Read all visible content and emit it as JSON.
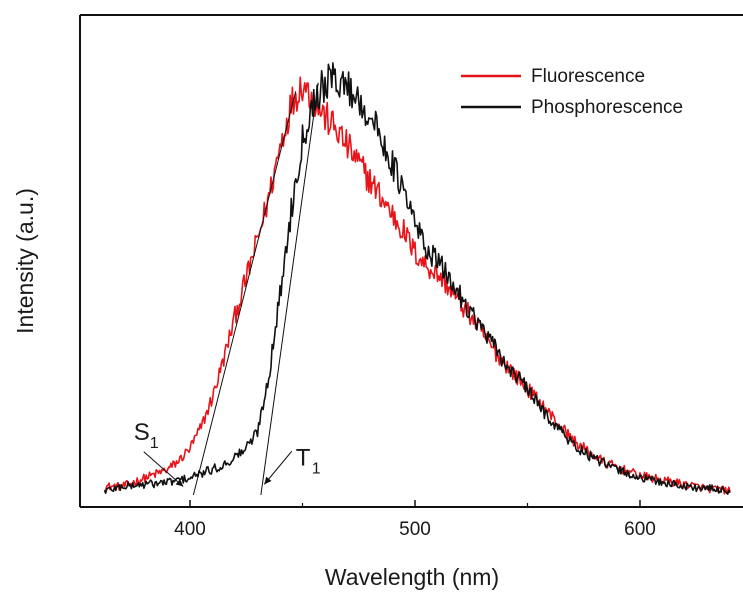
{
  "chart_data": {
    "type": "line",
    "xlabel": "Wavelength (nm)",
    "ylabel": "Intensity (a.u.)",
    "xlim": [
      360,
      642
    ],
    "ylim": [
      0,
      1.05
    ],
    "xticks": [
      400,
      500,
      600
    ],
    "y_tick_labels": false,
    "grid": false,
    "legend": "top-right",
    "series": [
      {
        "name": "Fluorescence",
        "color": "#e8141a",
        "points": [
          [
            362,
            0.02
          ],
          [
            370,
            0.02
          ],
          [
            380,
            0.04
          ],
          [
            390,
            0.06
          ],
          [
            395,
            0.08
          ],
          [
            400,
            0.11
          ],
          [
            405,
            0.16
          ],
          [
            410,
            0.23
          ],
          [
            415,
            0.32
          ],
          [
            420,
            0.42
          ],
          [
            425,
            0.51
          ],
          [
            430,
            0.6
          ],
          [
            435,
            0.7
          ],
          [
            440,
            0.82
          ],
          [
            445,
            0.92
          ],
          [
            450,
            0.97
          ],
          [
            455,
            0.93
          ],
          [
            460,
            0.89
          ],
          [
            465,
            0.86
          ],
          [
            470,
            0.82
          ],
          [
            475,
            0.78
          ],
          [
            480,
            0.74
          ],
          [
            485,
            0.7
          ],
          [
            490,
            0.66
          ],
          [
            495,
            0.62
          ],
          [
            500,
            0.57
          ],
          [
            505,
            0.54
          ],
          [
            510,
            0.52
          ],
          [
            515,
            0.49
          ],
          [
            520,
            0.45
          ],
          [
            525,
            0.42
          ],
          [
            530,
            0.38
          ],
          [
            535,
            0.34
          ],
          [
            540,
            0.31
          ],
          [
            545,
            0.28
          ],
          [
            550,
            0.25
          ],
          [
            555,
            0.22
          ],
          [
            560,
            0.19
          ],
          [
            565,
            0.16
          ],
          [
            570,
            0.13
          ],
          [
            575,
            0.11
          ],
          [
            580,
            0.09
          ],
          [
            585,
            0.075
          ],
          [
            590,
            0.065
          ],
          [
            595,
            0.055
          ],
          [
            600,
            0.045
          ],
          [
            610,
            0.035
          ],
          [
            620,
            0.025
          ],
          [
            630,
            0.015
          ],
          [
            640,
            0.01
          ]
        ]
      },
      {
        "name": "Phosphorescence",
        "color": "#111111",
        "points": [
          [
            362,
            0.01
          ],
          [
            370,
            0.02
          ],
          [
            380,
            0.025
          ],
          [
            390,
            0.03
          ],
          [
            400,
            0.04
          ],
          [
            410,
            0.06
          ],
          [
            415,
            0.07
          ],
          [
            420,
            0.09
          ],
          [
            425,
            0.11
          ],
          [
            430,
            0.15
          ],
          [
            435,
            0.28
          ],
          [
            440,
            0.47
          ],
          [
            445,
            0.67
          ],
          [
            450,
            0.84
          ],
          [
            455,
            0.93
          ],
          [
            460,
            0.97
          ],
          [
            465,
            0.98
          ],
          [
            470,
            0.96
          ],
          [
            475,
            0.93
          ],
          [
            480,
            0.89
          ],
          [
            485,
            0.84
          ],
          [
            490,
            0.78
          ],
          [
            495,
            0.71
          ],
          [
            500,
            0.64
          ],
          [
            505,
            0.58
          ],
          [
            510,
            0.55
          ],
          [
            515,
            0.51
          ],
          [
            520,
            0.47
          ],
          [
            525,
            0.43
          ],
          [
            530,
            0.39
          ],
          [
            535,
            0.35
          ],
          [
            540,
            0.31
          ],
          [
            545,
            0.28
          ],
          [
            550,
            0.25
          ],
          [
            555,
            0.21
          ],
          [
            560,
            0.18
          ],
          [
            565,
            0.15
          ],
          [
            570,
            0.12
          ],
          [
            575,
            0.1
          ],
          [
            580,
            0.085
          ],
          [
            585,
            0.07
          ],
          [
            590,
            0.06
          ],
          [
            595,
            0.05
          ],
          [
            600,
            0.04
          ],
          [
            610,
            0.03
          ],
          [
            620,
            0.02
          ],
          [
            630,
            0.015
          ],
          [
            640,
            0.01
          ]
        ]
      }
    ],
    "onset_lines": [
      {
        "from": [
          401.5,
          0.0
        ],
        "to": [
          447,
          0.95
        ]
      },
      {
        "from": [
          431.5,
          0.0
        ],
        "to": [
          457,
          0.97
        ]
      }
    ],
    "annotations": [
      {
        "main": "S",
        "sub": "1",
        "at": [
          397,
          0.02
        ],
        "label_at": [
          383,
          0.13
        ]
      },
      {
        "main": "T",
        "sub": "1",
        "at": [
          433,
          0.025
        ],
        "label_at": [
          455,
          0.07
        ]
      }
    ]
  }
}
